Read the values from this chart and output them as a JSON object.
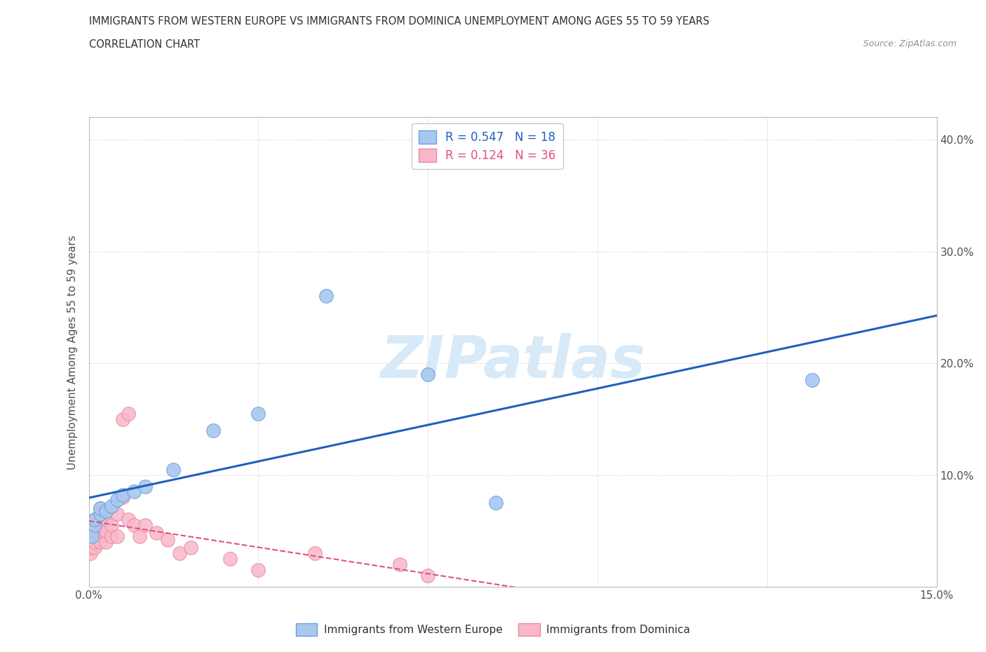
{
  "title_line1": "IMMIGRANTS FROM WESTERN EUROPE VS IMMIGRANTS FROM DOMINICA UNEMPLOYMENT AMONG AGES 55 TO 59 YEARS",
  "title_line2": "CORRELATION CHART",
  "source": "Source: ZipAtlas.com",
  "ylabel": "Unemployment Among Ages 55 to 59 years",
  "xlim": [
    0.0,
    0.15
  ],
  "ylim": [
    0.0,
    0.42
  ],
  "xticks": [
    0.0,
    0.03,
    0.06,
    0.09,
    0.12,
    0.15
  ],
  "yticks": [
    0.0,
    0.1,
    0.2,
    0.3,
    0.4
  ],
  "western_europe_x": [
    0.0005,
    0.001,
    0.001,
    0.002,
    0.002,
    0.003,
    0.004,
    0.005,
    0.006,
    0.008,
    0.01,
    0.015,
    0.022,
    0.03,
    0.042,
    0.06,
    0.072,
    0.128
  ],
  "western_europe_y": [
    0.045,
    0.055,
    0.06,
    0.065,
    0.07,
    0.068,
    0.072,
    0.078,
    0.082,
    0.085,
    0.09,
    0.105,
    0.14,
    0.155,
    0.26,
    0.19,
    0.075,
    0.185
  ],
  "dominica_x": [
    0.0003,
    0.0004,
    0.0005,
    0.001,
    0.001,
    0.001,
    0.001,
    0.001,
    0.002,
    0.002,
    0.002,
    0.002,
    0.002,
    0.003,
    0.003,
    0.003,
    0.004,
    0.004,
    0.005,
    0.005,
    0.006,
    0.006,
    0.007,
    0.007,
    0.008,
    0.009,
    0.01,
    0.012,
    0.014,
    0.016,
    0.018,
    0.025,
    0.03,
    0.04,
    0.055,
    0.06
  ],
  "dominica_y": [
    0.03,
    0.035,
    0.04,
    0.035,
    0.04,
    0.05,
    0.055,
    0.06,
    0.04,
    0.05,
    0.055,
    0.06,
    0.07,
    0.04,
    0.05,
    0.06,
    0.045,
    0.055,
    0.045,
    0.065,
    0.08,
    0.15,
    0.06,
    0.155,
    0.055,
    0.045,
    0.055,
    0.048,
    0.042,
    0.03,
    0.035,
    0.025,
    0.015,
    0.03,
    0.02,
    0.01
  ],
  "we_R": "0.547",
  "we_N": "18",
  "dom_R": "0.124",
  "dom_N": "36",
  "we_scatter_color": "#a8c8f0",
  "we_edge_color": "#6aa0d8",
  "dom_scatter_color": "#f9b8c8",
  "dom_edge_color": "#e888a0",
  "we_line_color": "#2060c0",
  "dom_line_color": "#e05080",
  "watermark_color": "#d8eaf8",
  "background_color": "#ffffff",
  "grid_color": "#e0e0e0",
  "title_color": "#303030",
  "axis_label_color": "#505050",
  "tick_label_color": "#505050",
  "source_color": "#909090",
  "legend_text_color": "#303030",
  "legend_border_color": "#c0c0c0"
}
